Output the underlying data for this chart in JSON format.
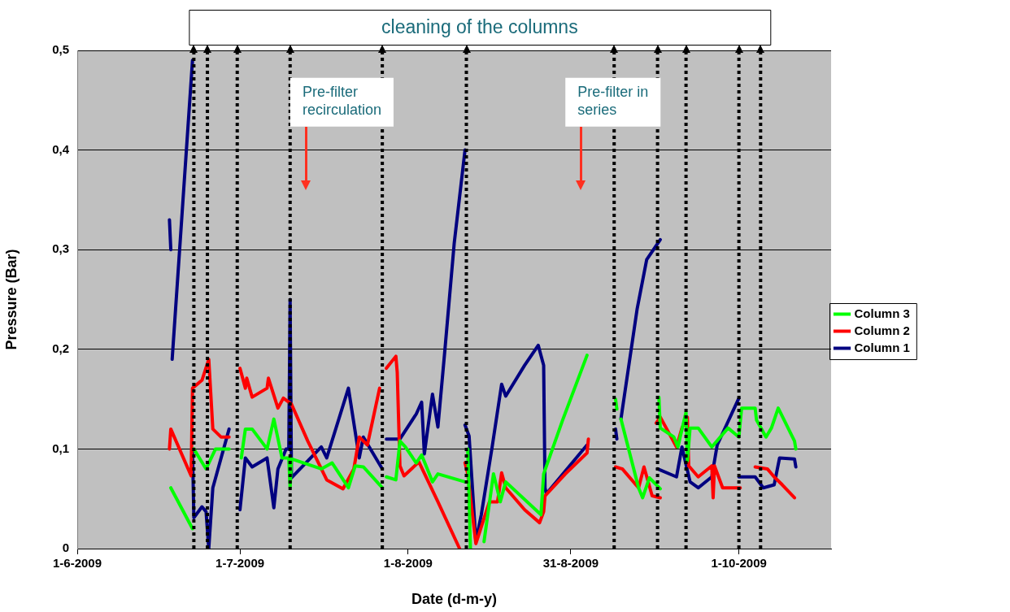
{
  "chart_data": {
    "type": "line",
    "xlabel": "Date (d-m-y)",
    "ylabel": "Pressure (Bar)",
    "xlim": [
      "2009-06-01",
      "2009-10-18"
    ],
    "xticks": [
      {
        "value": "2009-06-01",
        "label": "1-6-2009"
      },
      {
        "value": "2009-07-01",
        "label": "1-7-2009"
      },
      {
        "value": "2009-08-01",
        "label": "1-8-2009"
      },
      {
        "value": "2009-08-31",
        "label": "31-8-2009"
      },
      {
        "value": "2009-10-01",
        "label": "1-10-2009"
      }
    ],
    "ylim": [
      0,
      0.5
    ],
    "yticks": [
      0,
      {
        "value": 0.1,
        "label": "0,1"
      },
      {
        "value": 0.2,
        "label": "0,2"
      },
      {
        "value": 0.3,
        "label": "0,3"
      },
      {
        "value": 0.4,
        "label": "0,4"
      },
      {
        "value": 0.5,
        "label": "0,5"
      }
    ],
    "grid": "y",
    "legend": "right",
    "marker": "none",
    "line_style": "solid",
    "series": [
      {
        "name": "Column 3",
        "color": "#00ff00",
        "x": [
          "2009-06-18T06:00",
          "2009-06-22T06:00",
          null,
          "2009-06-22T12:00",
          "2009-06-24T18:00",
          "2009-06-26T12:00",
          "2009-06-29T00:00",
          null,
          "2009-07-01T06:00",
          "2009-07-02T00:00",
          "2009-07-03T06:00",
          "2009-07-06T00:00",
          "2009-07-07T06:00",
          "2009-07-08T18:00",
          "2009-07-10T00:00",
          "2009-07-10T06:00",
          "2009-07-10T12:00",
          "2009-07-16T00:00",
          "2009-07-18T00:00",
          "2009-07-21T00:00",
          "2009-07-22T06:00",
          "2009-07-23T18:00",
          "2009-07-27T06:00",
          null,
          "2009-07-28T00:00",
          "2009-07-29T18:00",
          "2009-07-30T12:00",
          "2009-07-31T12:00",
          "2009-08-02T12:00",
          "2009-08-03T12:00",
          "2009-08-05T12:00",
          "2009-08-06T12:00",
          "2009-08-11T12:00",
          null,
          "2009-08-12T00:00",
          "2009-08-12T12:00",
          null,
          "2009-08-15T00:00",
          "2009-08-16T18:00",
          "2009-08-18T00:00",
          "2009-08-19T00:00",
          "2009-08-25T12:00",
          "2009-08-26T00:00",
          "2009-08-29T12:00",
          "2009-09-03T00:00",
          null,
          "2009-09-08T06:00",
          "2009-09-08T12:00",
          null,
          "2009-09-09T06:00",
          "2009-09-12T12:00",
          "2009-09-13T06:00",
          "2009-09-14T12:00",
          "2009-09-16T12:00",
          null,
          "2009-09-16T06:00",
          "2009-09-16T12:00",
          "2009-09-19T00:00",
          "2009-09-19T18:00",
          "2009-09-21T06:00",
          "2009-09-21T12:00",
          "2009-09-22T00:00",
          "2009-09-23T12:00",
          "2009-09-26T00:00",
          "2009-09-29T00:00",
          "2009-10-01T00:00",
          "2009-10-01T12:00",
          "2009-10-04T00:00",
          "2009-10-04T06:00",
          "2009-10-06T00:00",
          "2009-10-07T00:00",
          "2009-10-08T06:00",
          "2009-10-11T06:00",
          "2009-10-11T12:00"
        ],
        "values": [
          0.061,
          0.02,
          null,
          0.1,
          0.08,
          0.1,
          0.1,
          null,
          0.091,
          0.12,
          0.12,
          0.1,
          0.13,
          0.091,
          0.091,
          0.061,
          0.09,
          0.08,
          0.086,
          0.061,
          0.083,
          0.082,
          0.061,
          null,
          0.072,
          0.069,
          0.108,
          0.102,
          0.086,
          0.094,
          0.067,
          0.075,
          0.067,
          null,
          0.1,
          0.0,
          null,
          0.007,
          0.075,
          0.047,
          0.067,
          0.034,
          0.075,
          0.129,
          0.194,
          null,
          0.15,
          0.14,
          null,
          0.13,
          0.061,
          0.051,
          0.071,
          0.06,
          null,
          0.152,
          0.121,
          0.112,
          0.102,
          0.137,
          0.088,
          0.121,
          0.121,
          0.102,
          0.121,
          0.112,
          0.141,
          0.141,
          0.129,
          0.112,
          0.121,
          0.141,
          0.108,
          0.1
        ]
      },
      {
        "name": "Column 2",
        "color": "#ff0000",
        "x": [
          "2009-06-18T00:00",
          "2009-06-18T06:00",
          "2009-06-22T00:00",
          "2009-06-22T06:00",
          "2009-06-24T00:00",
          "2009-06-25T06:00",
          "2009-06-26T00:00",
          "2009-06-27T12:00",
          "2009-06-29T00:00",
          null,
          "2009-07-01T00:00",
          "2009-07-02T00:00",
          "2009-07-02T06:00",
          "2009-07-03T06:00",
          "2009-07-06T00:00",
          "2009-07-06T06:00",
          "2009-07-08T00:00",
          "2009-07-09T00:00",
          "2009-07-10T12:00",
          "2009-07-13T12:00",
          "2009-07-17T00:00",
          "2009-07-20T00:00",
          "2009-07-22T00:00",
          "2009-07-23T00:00",
          "2009-07-24T12:00",
          "2009-07-26T18:00",
          null,
          "2009-07-28T00:00",
          "2009-07-29T18:00",
          "2009-07-30T00:00",
          "2009-07-30T12:00",
          "2009-07-31T06:00",
          "2009-08-03T00:00",
          "2009-08-06T12:00",
          "2009-08-10T12:00",
          null,
          "2009-08-11T12:00",
          "2009-08-12T00:00",
          "2009-08-13T12:00",
          "2009-08-16T00:00",
          "2009-08-17T12:00",
          "2009-08-18T06:00",
          "2009-08-19T00:00",
          "2009-08-22T12:00",
          "2009-08-25T06:00",
          "2009-08-26T00:00",
          "2009-08-26T06:00",
          "2009-08-30T00:00",
          "2009-09-03T00:00",
          "2009-09-03T06:00",
          null,
          "2009-09-08T06:00",
          "2009-09-09T12:00",
          "2009-09-12T12:00",
          "2009-09-13T12:00",
          "2009-09-15T00:00",
          "2009-09-16T12:00",
          null,
          "2009-09-15T18:00",
          "2009-09-16T12:00",
          "2009-09-19T12:00",
          "2009-09-20T12:00",
          "2009-09-21T12:00",
          "2009-09-21T18:00",
          "2009-09-23T12:00",
          "2009-09-26T00:00",
          "2009-09-26T06:00",
          "2009-09-26T12:00",
          "2009-09-28T00:00",
          "2009-10-01T06:00",
          null,
          "2009-10-04T00:00",
          "2009-10-06T06:00",
          "2009-10-07T12:00",
          "2009-10-09T00:00",
          "2009-10-11T06:00"
        ],
        "values": [
          0.1,
          0.12,
          0.073,
          0.161,
          0.169,
          0.19,
          0.12,
          0.112,
          0.112,
          null,
          0.181,
          0.161,
          0.171,
          0.152,
          0.161,
          0.171,
          0.141,
          0.151,
          0.145,
          0.108,
          0.069,
          0.06,
          0.08,
          0.112,
          0.104,
          0.161,
          null,
          0.181,
          0.193,
          0.177,
          0.083,
          0.073,
          0.087,
          0.047,
          0.0,
          null,
          0.086,
          0.075,
          0.005,
          0.047,
          0.047,
          0.076,
          0.061,
          0.039,
          0.026,
          0.037,
          0.053,
          0.075,
          0.096,
          0.11,
          null,
          0.082,
          0.08,
          0.061,
          0.082,
          0.053,
          0.051,
          null,
          0.126,
          0.132,
          0.102,
          0.121,
          0.132,
          0.083,
          0.072,
          0.083,
          0.051,
          0.083,
          0.061,
          0.061,
          null,
          0.082,
          0.08,
          0.072,
          0.064,
          0.051
        ]
      },
      {
        "name": "Column 1",
        "color": "#000080",
        "x": [
          "2009-06-18T00:00",
          "2009-06-18T06:00",
          null,
          "2009-06-18T12:00",
          "2009-06-22T06:00",
          null,
          "2009-06-22T06:00",
          "2009-06-22T12:00",
          "2009-06-24T00:00",
          "2009-06-24T18:00",
          "2009-06-25T06:00",
          "2009-06-26T00:00",
          "2009-06-29T00:00",
          null,
          "2009-07-01T00:00",
          "2009-07-02T00:00",
          "2009-07-03T06:00",
          "2009-07-06T00:00",
          "2009-07-07T06:00",
          "2009-07-08T00:00",
          "2009-07-09T12:00",
          "2009-07-10T00:00",
          "2009-07-10T06:00",
          "2009-07-10T12:00",
          "2009-07-16T00:00",
          "2009-07-17T00:00",
          "2009-07-21T00:00",
          "2009-07-23T00:00",
          "2009-07-23T18:00",
          "2009-07-27T06:00",
          null,
          "2009-07-28T00:00",
          "2009-07-30T12:00",
          "2009-08-02T12:00",
          "2009-08-03T12:00",
          "2009-08-04T00:00",
          "2009-08-05T12:00",
          "2009-08-06T12:00",
          "2009-08-07T18:00",
          "2009-08-09T12:00",
          "2009-08-11T12:00",
          null,
          "2009-08-11T12:00",
          "2009-08-12T06:00",
          "2009-08-13T12:00",
          "2009-08-14T12:00",
          "2009-08-16T12:00",
          "2009-08-18T06:00",
          "2009-08-19T00:00",
          "2009-08-22T12:00",
          "2009-08-25T00:00",
          "2009-08-26T00:00",
          "2009-08-26T06:00",
          "2009-08-26T12:00",
          "2009-09-03T00:00",
          null,
          "2009-09-08T06:00",
          "2009-09-08T12:00",
          null,
          "2009-09-09T06:00",
          "2009-09-12T06:00",
          "2009-09-14T00:00",
          "2009-09-16T12:00",
          null,
          "2009-09-16T00:00",
          "2009-09-19T12:00",
          "2009-09-20T12:00",
          "2009-09-22T00:00",
          "2009-09-23T12:00",
          "2009-09-26T00:00",
          "2009-09-27T00:00",
          "2009-10-01T00:00",
          null,
          "2009-10-01T00:00",
          "2009-10-04T00:00",
          "2009-10-05T12:00",
          "2009-10-07T12:00",
          "2009-10-08T12:00",
          "2009-10-11T06:00",
          "2009-10-11T12:00"
        ],
        "values": [
          0.33,
          0.3,
          null,
          0.19,
          0.49,
          null,
          0.1,
          0.031,
          0.042,
          0.037,
          0.0,
          0.061,
          0.12,
          null,
          0.039,
          0.091,
          0.082,
          0.091,
          0.041,
          0.08,
          0.1,
          0.1,
          0.25,
          0.071,
          0.102,
          0.091,
          0.161,
          0.091,
          0.112,
          0.08,
          null,
          0.11,
          0.11,
          0.135,
          0.147,
          0.095,
          0.155,
          0.122,
          0.197,
          0.306,
          0.4,
          null,
          0.124,
          0.113,
          0.007,
          0.034,
          0.102,
          0.165,
          0.153,
          0.184,
          0.204,
          0.184,
          0.061,
          0.055,
          0.104,
          null,
          0.12,
          0.11,
          null,
          0.13,
          0.241,
          0.29,
          0.31,
          null,
          0.08,
          0.072,
          0.102,
          0.067,
          0.061,
          0.072,
          0.104,
          0.151,
          null,
          0.072,
          0.072,
          0.061,
          0.064,
          0.091,
          0.09,
          0.082
        ]
      }
    ],
    "ref_lines": [
      {
        "axis": "x",
        "value": "2009-06-22T12:00",
        "color": "#000000",
        "line_style": "dotted"
      },
      {
        "axis": "x",
        "value": "2009-06-25T00:00",
        "color": "#000000",
        "line_style": "dotted"
      },
      {
        "axis": "x",
        "value": "2009-06-30T12:00",
        "color": "#000000",
        "line_style": "dotted"
      },
      {
        "axis": "x",
        "value": "2009-07-10T06:00",
        "color": "#000000",
        "line_style": "dotted"
      },
      {
        "axis": "x",
        "value": "2009-07-27T06:00",
        "color": "#000000",
        "line_style": "dotted"
      },
      {
        "axis": "x",
        "value": "2009-08-11T18:00",
        "color": "#000000",
        "line_style": "dotted"
      },
      {
        "axis": "x",
        "value": "2009-09-08T00:00",
        "color": "#000000",
        "line_style": "dotted"
      },
      {
        "axis": "x",
        "value": "2009-09-16T00:00",
        "color": "#000000",
        "line_style": "dotted"
      },
      {
        "axis": "x",
        "value": "2009-09-21T06:00",
        "color": "#000000",
        "line_style": "dotted"
      },
      {
        "axis": "x",
        "value": "2009-10-01T00:00",
        "color": "#000000",
        "line_style": "dotted"
      },
      {
        "axis": "x",
        "value": "2009-10-05T00:00",
        "color": "#000000",
        "line_style": "dotted"
      }
    ],
    "annotations": [
      "cleaning of the columns",
      "Pre-filter recirculation",
      "Pre-filter in series"
    ]
  }
}
